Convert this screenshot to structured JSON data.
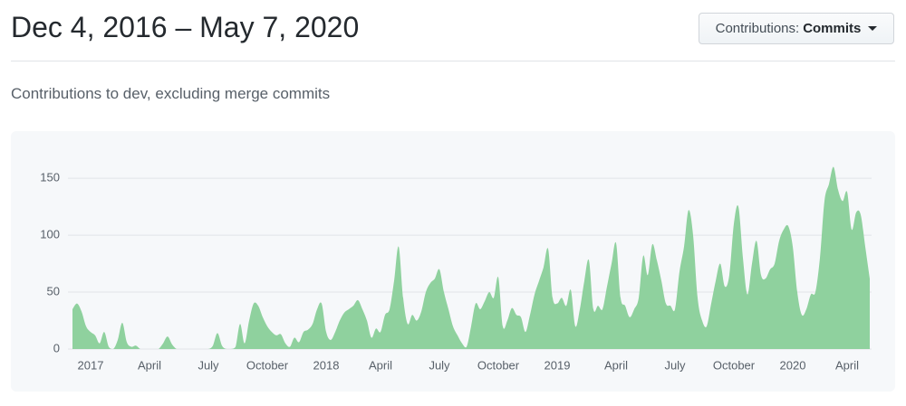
{
  "header": {
    "title": "Dec 4, 2016 – May 7, 2020",
    "button_label": "Contributions:",
    "button_value": "Commits"
  },
  "subtitle": "Contributions to dev, excluding merge commits",
  "chart_data": {
    "type": "area",
    "color": "#8fd19e",
    "categories": [
      null,
      null,
      null,
      null,
      "2017",
      null,
      null,
      null,
      null,
      null,
      null,
      null,
      null,
      null,
      null,
      null,
      null,
      "April",
      null,
      null,
      null,
      null,
      null,
      null,
      null,
      null,
      null,
      null,
      null,
      null,
      "July",
      null,
      null,
      null,
      null,
      null,
      null,
      null,
      null,
      null,
      null,
      null,
      null,
      "October",
      null,
      null,
      null,
      null,
      null,
      null,
      null,
      null,
      null,
      null,
      null,
      null,
      "2018",
      null,
      null,
      null,
      null,
      null,
      null,
      null,
      null,
      null,
      null,
      null,
      "April",
      null,
      null,
      null,
      null,
      null,
      null,
      null,
      null,
      null,
      null,
      null,
      null,
      "July",
      null,
      null,
      null,
      null,
      null,
      null,
      null,
      null,
      null,
      null,
      null,
      null,
      "October",
      null,
      null,
      null,
      null,
      null,
      null,
      null,
      null,
      null,
      null,
      null,
      null,
      "2019",
      null,
      null,
      null,
      null,
      null,
      null,
      null,
      null,
      null,
      null,
      null,
      null,
      "April",
      null,
      null,
      null,
      null,
      null,
      null,
      null,
      null,
      null,
      null,
      null,
      null,
      "July",
      null,
      null,
      null,
      null,
      null,
      null,
      null,
      null,
      null,
      null,
      null,
      null,
      "October",
      null,
      null,
      null,
      null,
      null,
      null,
      null,
      null,
      null,
      null,
      null,
      null,
      "2020",
      null,
      null,
      null,
      null,
      null,
      null,
      null,
      null,
      null,
      null,
      null,
      "April",
      null,
      null,
      null,
      null,
      null
    ],
    "values": [
      35,
      40,
      33,
      20,
      15,
      12,
      5,
      15,
      2,
      0,
      8,
      23,
      6,
      2,
      3,
      0,
      0,
      0,
      0,
      0,
      5,
      11,
      4,
      0,
      0,
      0,
      0,
      0,
      0,
      0,
      0,
      3,
      14,
      3,
      0,
      0,
      2,
      22,
      5,
      25,
      40,
      38,
      28,
      20,
      15,
      12,
      13,
      5,
      2,
      10,
      6,
      15,
      17,
      22,
      35,
      40,
      15,
      8,
      15,
      25,
      32,
      35,
      38,
      43,
      35,
      25,
      10,
      18,
      15,
      30,
      35,
      60,
      90,
      45,
      22,
      30,
      25,
      33,
      50,
      58,
      62,
      70,
      50,
      35,
      20,
      12,
      5,
      2,
      20,
      40,
      35,
      42,
      50,
      45,
      63,
      20,
      25,
      36,
      30,
      28,
      15,
      30,
      48,
      60,
      72,
      88,
      45,
      40,
      45,
      38,
      52,
      20,
      35,
      60,
      78,
      35,
      38,
      35,
      55,
      75,
      93,
      45,
      38,
      28,
      35,
      45,
      82,
      65,
      92,
      78,
      60,
      40,
      38,
      35,
      68,
      90,
      122,
      100,
      45,
      25,
      20,
      40,
      60,
      75,
      55,
      65,
      110,
      125,
      80,
      48,
      75,
      95,
      65,
      62,
      70,
      75,
      95,
      105,
      108,
      90,
      50,
      30,
      35,
      48,
      50,
      80,
      130,
      145,
      160,
      140,
      130,
      138,
      105,
      120,
      118,
      90,
      62
    ],
    "ylim": [
      0,
      170
    ],
    "yticks": [
      0,
      50,
      100,
      150
    ],
    "grid": true
  }
}
